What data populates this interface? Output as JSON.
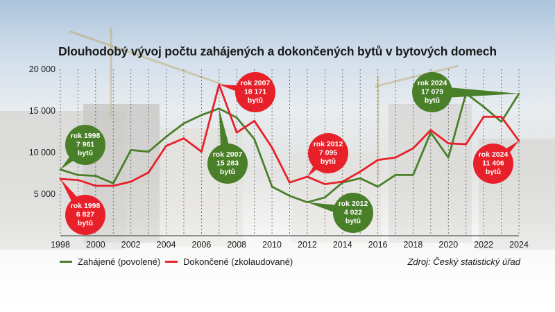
{
  "title": "Dlouhodobý vývoj počtu zahájených a dokončených bytů v bytových domech",
  "source": "Zdroj: Český statistický úřad",
  "colors": {
    "green": "#4a7f2a",
    "red": "#e8202a"
  },
  "chart_data": {
    "type": "line",
    "x": [
      1998,
      1999,
      2000,
      2001,
      2002,
      2003,
      2004,
      2005,
      2006,
      2007,
      2008,
      2009,
      2010,
      2011,
      2012,
      2013,
      2014,
      2015,
      2016,
      2017,
      2018,
      2019,
      2020,
      2021,
      2022,
      2023,
      2024
    ],
    "xlim": [
      1998,
      2024
    ],
    "ylim": [
      0,
      20000
    ],
    "x_ticks": [
      "1998",
      "2000",
      "2002",
      "2004",
      "2006",
      "2008",
      "2010",
      "2012",
      "2014",
      "2016",
      "2018",
      "2020",
      "2022",
      "2024"
    ],
    "y_ticks": [
      "5 000",
      "10 000",
      "15 000",
      "20 000"
    ],
    "grid": "vertical",
    "series": [
      {
        "name": "Zahájené (povolené)",
        "color": "#4a7f2a",
        "values": [
          7961,
          7300,
          7200,
          6300,
          10300,
          10100,
          11900,
          13500,
          14500,
          15283,
          14200,
          11600,
          5900,
          4800,
          4022,
          4600,
          6400,
          6900,
          5900,
          7300,
          7300,
          12400,
          9400,
          17100,
          15500,
          13700,
          17079
        ]
      },
      {
        "name": "Dokončené (zkolaudované)",
        "color": "#e8202a",
        "values": [
          6827,
          6700,
          6000,
          6000,
          6500,
          7600,
          10800,
          11700,
          10100,
          18171,
          12400,
          13800,
          10600,
          6400,
          7095,
          6200,
          6500,
          7700,
          9100,
          9400,
          10500,
          12700,
          11100,
          11000,
          14300,
          14300,
          11406
        ]
      }
    ],
    "annotations": [
      {
        "year": "rok 1998",
        "value": "7 961",
        "unit": "bytů",
        "series": "green"
      },
      {
        "year": "rok 1998",
        "value": "6 827",
        "unit": "bytů",
        "series": "red"
      },
      {
        "year": "rok 2007",
        "value": "18 171",
        "unit": "bytů",
        "series": "red"
      },
      {
        "year": "rok 2007",
        "value": "15 283",
        "unit": "bytů",
        "series": "green"
      },
      {
        "year": "rok 2012",
        "value": "7 095",
        "unit": "bytů",
        "series": "red"
      },
      {
        "year": "rok 2012",
        "value": "4 022",
        "unit": "bytů",
        "series": "green"
      },
      {
        "year": "rok 2024",
        "value": "17 079",
        "unit": "bytů",
        "series": "green"
      },
      {
        "year": "rok 2024",
        "value": "11 406",
        "unit": "bytů",
        "series": "red"
      }
    ]
  }
}
